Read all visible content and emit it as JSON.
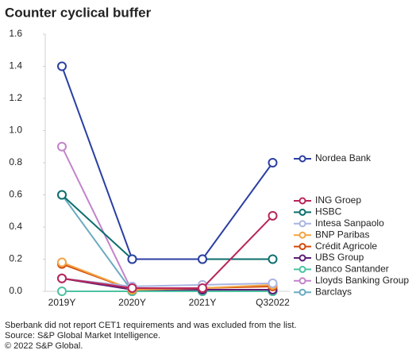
{
  "chart_data": {
    "type": "line",
    "title": "Counter cyclical buffer",
    "categories": [
      "2019Y",
      "2020Y",
      "2021Y",
      "Q32022"
    ],
    "ylim": [
      0,
      1.6
    ],
    "yticks": [
      {
        "value": 0,
        "label": "0.0"
      },
      0.2,
      0.4,
      0.6,
      0.8,
      {
        "value": 1,
        "label": "1.0"
      },
      1.2,
      1.4,
      1.6
    ],
    "grid": false,
    "series": [
      {
        "name": "Nordea Bank",
        "color": "#2b3fa3",
        "values": [
          1.4,
          0.2,
          0.2,
          0.8
        ]
      },
      {
        "name": "ING Groep",
        "color": "#b8255a",
        "values": [
          0.08,
          0.02,
          0.02,
          0.47
        ]
      },
      {
        "name": "HSBC",
        "color": "#0e6e6e",
        "values": [
          0.6,
          0.2,
          0.2,
          0.2
        ]
      },
      {
        "name": "Intesa Sanpaolo",
        "color": "#aab4e2",
        "values": [
          0.08,
          0.03,
          0.04,
          0.05
        ]
      },
      {
        "name": "BNP Paribas",
        "color": "#f2a444",
        "values": [
          0.18,
          0.01,
          0.02,
          0.04
        ]
      },
      {
        "name": "Crédit Agricole",
        "color": "#d2490c",
        "values": [
          0.17,
          0.01,
          0.02,
          0.03
        ]
      },
      {
        "name": "UBS Group",
        "color": "#5b1c72",
        "values": [
          0.08,
          0.01,
          0.01,
          0.01
        ]
      },
      {
        "name": "Banco Santander",
        "color": "#4dc2a2",
        "values": [
          0,
          0,
          0,
          0
        ]
      },
      {
        "name": "Lloyds Banking Group",
        "color": "#c283ca",
        "values": [
          0.9,
          0,
          0,
          0
        ]
      },
      {
        "name": "Barclays",
        "color": "#6babc0",
        "values": [
          0.6,
          0,
          0,
          0
        ]
      }
    ],
    "notes": [
      "Sberbank did not report CET1 requirements and was excluded from the list.",
      "Source: S&P Global Market Intelligence.",
      "© 2022 S&P Global."
    ]
  }
}
